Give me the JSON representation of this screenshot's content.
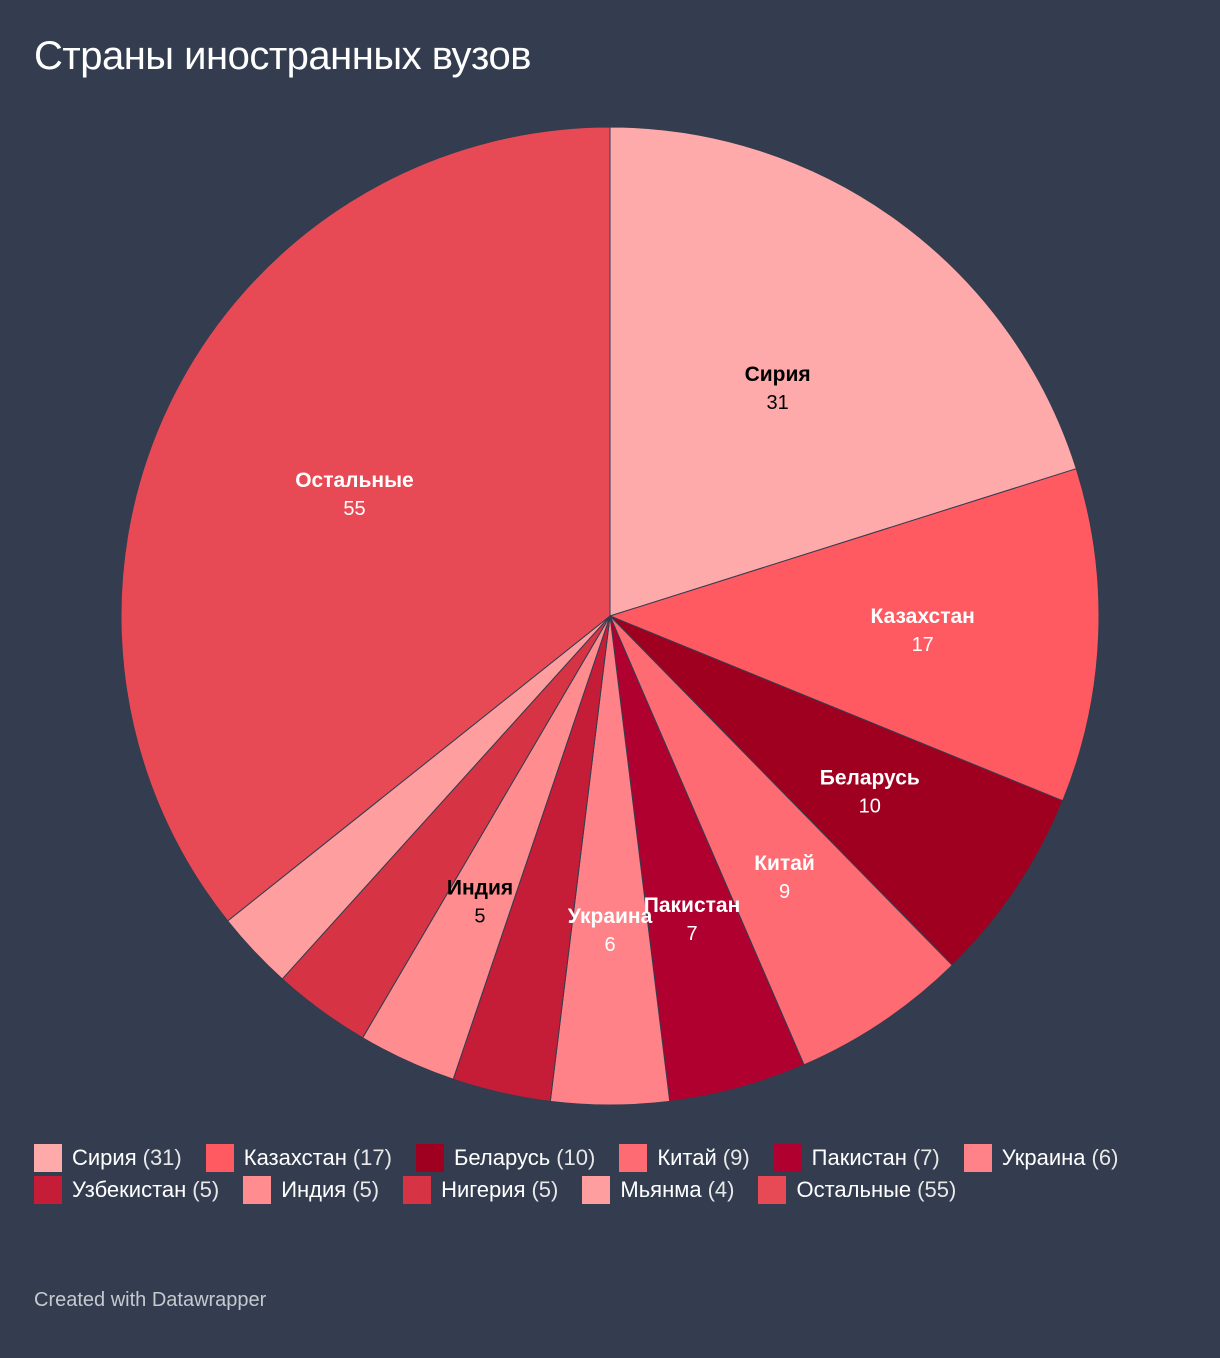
{
  "title": "Страны иностранных вузов",
  "footer": "Created with Datawrapper",
  "chart_data": {
    "type": "pie",
    "title": "Страны иностранных вузов",
    "legend_position": "bottom",
    "slices": [
      {
        "name": "Сирия",
        "value": 31,
        "color": "#ffaaaa",
        "label_color": "#000000",
        "label_shown": true
      },
      {
        "name": "Казахстан",
        "value": 17,
        "color": "#ff5a62",
        "label_color": "#ffffff",
        "label_shown": true
      },
      {
        "name": "Беларусь",
        "value": 10,
        "color": "#a00020",
        "label_color": "#ffffff",
        "label_shown": true
      },
      {
        "name": "Китай",
        "value": 9,
        "color": "#ff6b72",
        "label_color": "#ffffff",
        "label_shown": true
      },
      {
        "name": "Пакистан",
        "value": 7,
        "color": "#b00030",
        "label_color": "#ffffff",
        "label_shown": true
      },
      {
        "name": "Украина",
        "value": 6,
        "color": "#ff8288",
        "label_color": "#ffffff",
        "label_shown": true
      },
      {
        "name": "Узбекистан",
        "value": 5,
        "color": "#c51d38",
        "label_color": "#ffffff",
        "label_shown": false
      },
      {
        "name": "Индия",
        "value": 5,
        "color": "#ff8d90",
        "label_color": "#000000",
        "label_shown": true
      },
      {
        "name": "Нигерия",
        "value": 5,
        "color": "#d63444",
        "label_color": "#ffffff",
        "label_shown": false
      },
      {
        "name": "Мьянма",
        "value": 4,
        "color": "#ff9e9e",
        "label_color": "#000000",
        "label_shown": false
      },
      {
        "name": "Остальные",
        "value": 55,
        "color": "#e84a55",
        "label_color": "#ffffff",
        "label_shown": true
      }
    ]
  }
}
